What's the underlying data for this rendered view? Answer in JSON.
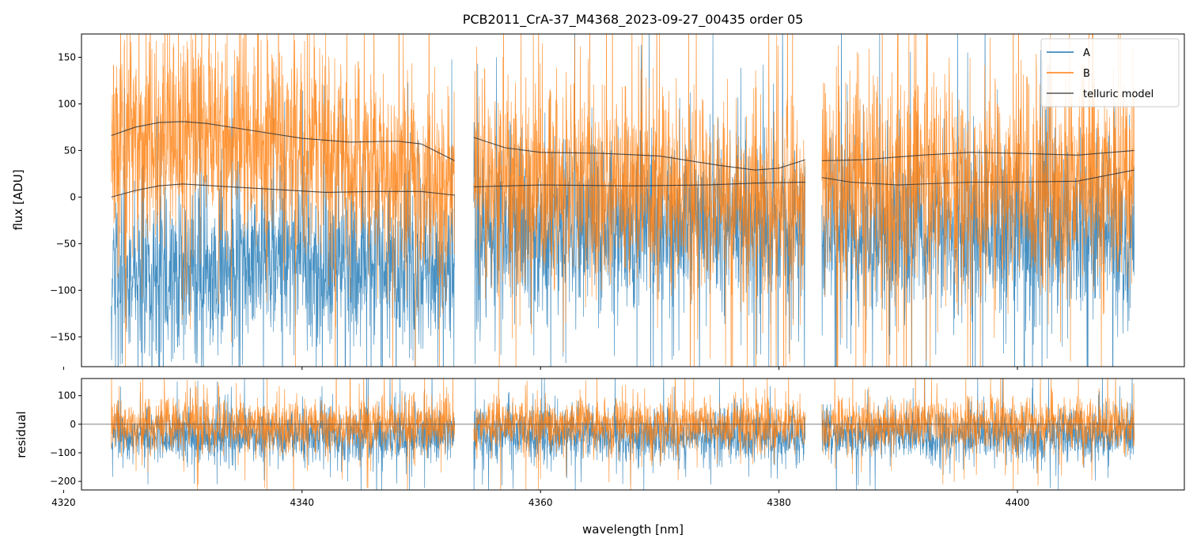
{
  "chart_data": {
    "type": "line",
    "title": "PCB2011_CrA-37_M4368_2023-09-27_00435  order 05",
    "xlabel": "wavelength [nm]",
    "xlim": [
      4321.5,
      4414
    ],
    "xticks": [
      4320,
      4340,
      4360,
      4380,
      4400
    ],
    "x_tick_labels": [
      "4320",
      "4340",
      "4360",
      "4380",
      "4400"
    ],
    "segments": [
      [
        4324.0,
        4352.8
      ],
      [
        4354.4,
        4382.2
      ],
      [
        4383.6,
        4409.8
      ]
    ],
    "colors": {
      "A": "#1f77b4",
      "B": "#ff7f0e",
      "model": "#333333"
    },
    "legend": {
      "loc": "upper right",
      "entries": [
        "A",
        "B",
        "telluric model"
      ]
    },
    "panels": [
      {
        "name": "flux",
        "ylabel": "flux [ADU]",
        "ylim": [
          -182,
          175
        ],
        "yticks": [
          -150,
          -100,
          -50,
          0,
          50,
          100,
          150
        ],
        "y_tick_labels": [
          "−150",
          "−100",
          "−50",
          "0",
          "50",
          "100",
          "150"
        ],
        "series": [
          {
            "name": "A",
            "baseline": [
              [
                4324,
                -85
              ],
              [
                4335,
                -70
              ],
              [
                4345,
                -65
              ],
              [
                4352.8,
                -75
              ],
              [
                4354.4,
                -40
              ],
              [
                4370,
                -30
              ],
              [
                4382.2,
                -30
              ],
              [
                4383.6,
                -40
              ],
              [
                4395,
                -35
              ],
              [
                4409.8,
                -40
              ]
            ],
            "noise": 46
          },
          {
            "name": "B",
            "baseline": [
              [
                4324,
                58
              ],
              [
                4330,
                70
              ],
              [
                4340,
                55
              ],
              [
                4352.8,
                15
              ],
              [
                4354.4,
                12
              ],
              [
                4370,
                5
              ],
              [
                4382.2,
                0
              ],
              [
                4383.6,
                8
              ],
              [
                4395,
                15
              ],
              [
                4409.8,
                18
              ]
            ],
            "noise": 55
          }
        ],
        "telluric_model": [
          {
            "segment": 0,
            "points": [
              [
                4324.0,
                66
              ],
              [
                4326.0,
                75
              ],
              [
                4328.0,
                80
              ],
              [
                4330.0,
                81
              ],
              [
                4332.0,
                79
              ],
              [
                4336.0,
                71
              ],
              [
                4340.0,
                63
              ],
              [
                4344.0,
                59
              ],
              [
                4348.0,
                60
              ],
              [
                4350.0,
                57
              ],
              [
                4352.8,
                39
              ]
            ]
          },
          {
            "segment": 0,
            "points": [
              [
                4324.0,
                0
              ],
              [
                4326.0,
                7
              ],
              [
                4328.0,
                12
              ],
              [
                4330.0,
                14
              ],
              [
                4334.0,
                11
              ],
              [
                4338.0,
                8
              ],
              [
                4342.0,
                5
              ],
              [
                4346.0,
                6
              ],
              [
                4350.0,
                6
              ],
              [
                4352.8,
                2
              ]
            ]
          },
          {
            "segment": 1,
            "points": [
              [
                4354.4,
                64
              ],
              [
                4357.0,
                53
              ],
              [
                4360.0,
                48
              ],
              [
                4365.0,
                47
              ],
              [
                4370.0,
                44
              ],
              [
                4375.0,
                34
              ],
              [
                4378.0,
                29
              ],
              [
                4380.0,
                31
              ],
              [
                4382.2,
                40
              ]
            ]
          },
          {
            "segment": 1,
            "points": [
              [
                4354.4,
                11
              ],
              [
                4360.0,
                13
              ],
              [
                4368.0,
                12
              ],
              [
                4374.0,
                13
              ],
              [
                4378.0,
                15
              ],
              [
                4382.2,
                16
              ]
            ]
          },
          {
            "segment": 2,
            "points": [
              [
                4383.6,
                39
              ],
              [
                4387.0,
                40
              ],
              [
                4392.0,
                45
              ],
              [
                4396.0,
                48
              ],
              [
                4400.0,
                47
              ],
              [
                4405.0,
                45
              ],
              [
                4409.8,
                50
              ]
            ]
          },
          {
            "segment": 2,
            "points": [
              [
                4383.6,
                21
              ],
              [
                4386.0,
                16
              ],
              [
                4390.0,
                13
              ],
              [
                4396.0,
                16
              ],
              [
                4400.0,
                16
              ],
              [
                4405.0,
                17
              ],
              [
                4409.8,
                29
              ]
            ]
          }
        ]
      },
      {
        "name": "residual",
        "ylabel": "residual",
        "ylim": [
          -230,
          160
        ],
        "yticks": [
          -200,
          -100,
          0,
          100
        ],
        "y_tick_labels": [
          "−200",
          "−100",
          "0",
          "100"
        ],
        "zero_line": 0,
        "series": [
          {
            "name": "A",
            "baseline": [
              [
                4324,
                -40
              ],
              [
                4409.8,
                -40
              ]
            ],
            "noise": 45
          },
          {
            "name": "B",
            "baseline": [
              [
                4324,
                0
              ],
              [
                4409.8,
                0
              ]
            ],
            "noise": 45
          }
        ]
      }
    ]
  }
}
